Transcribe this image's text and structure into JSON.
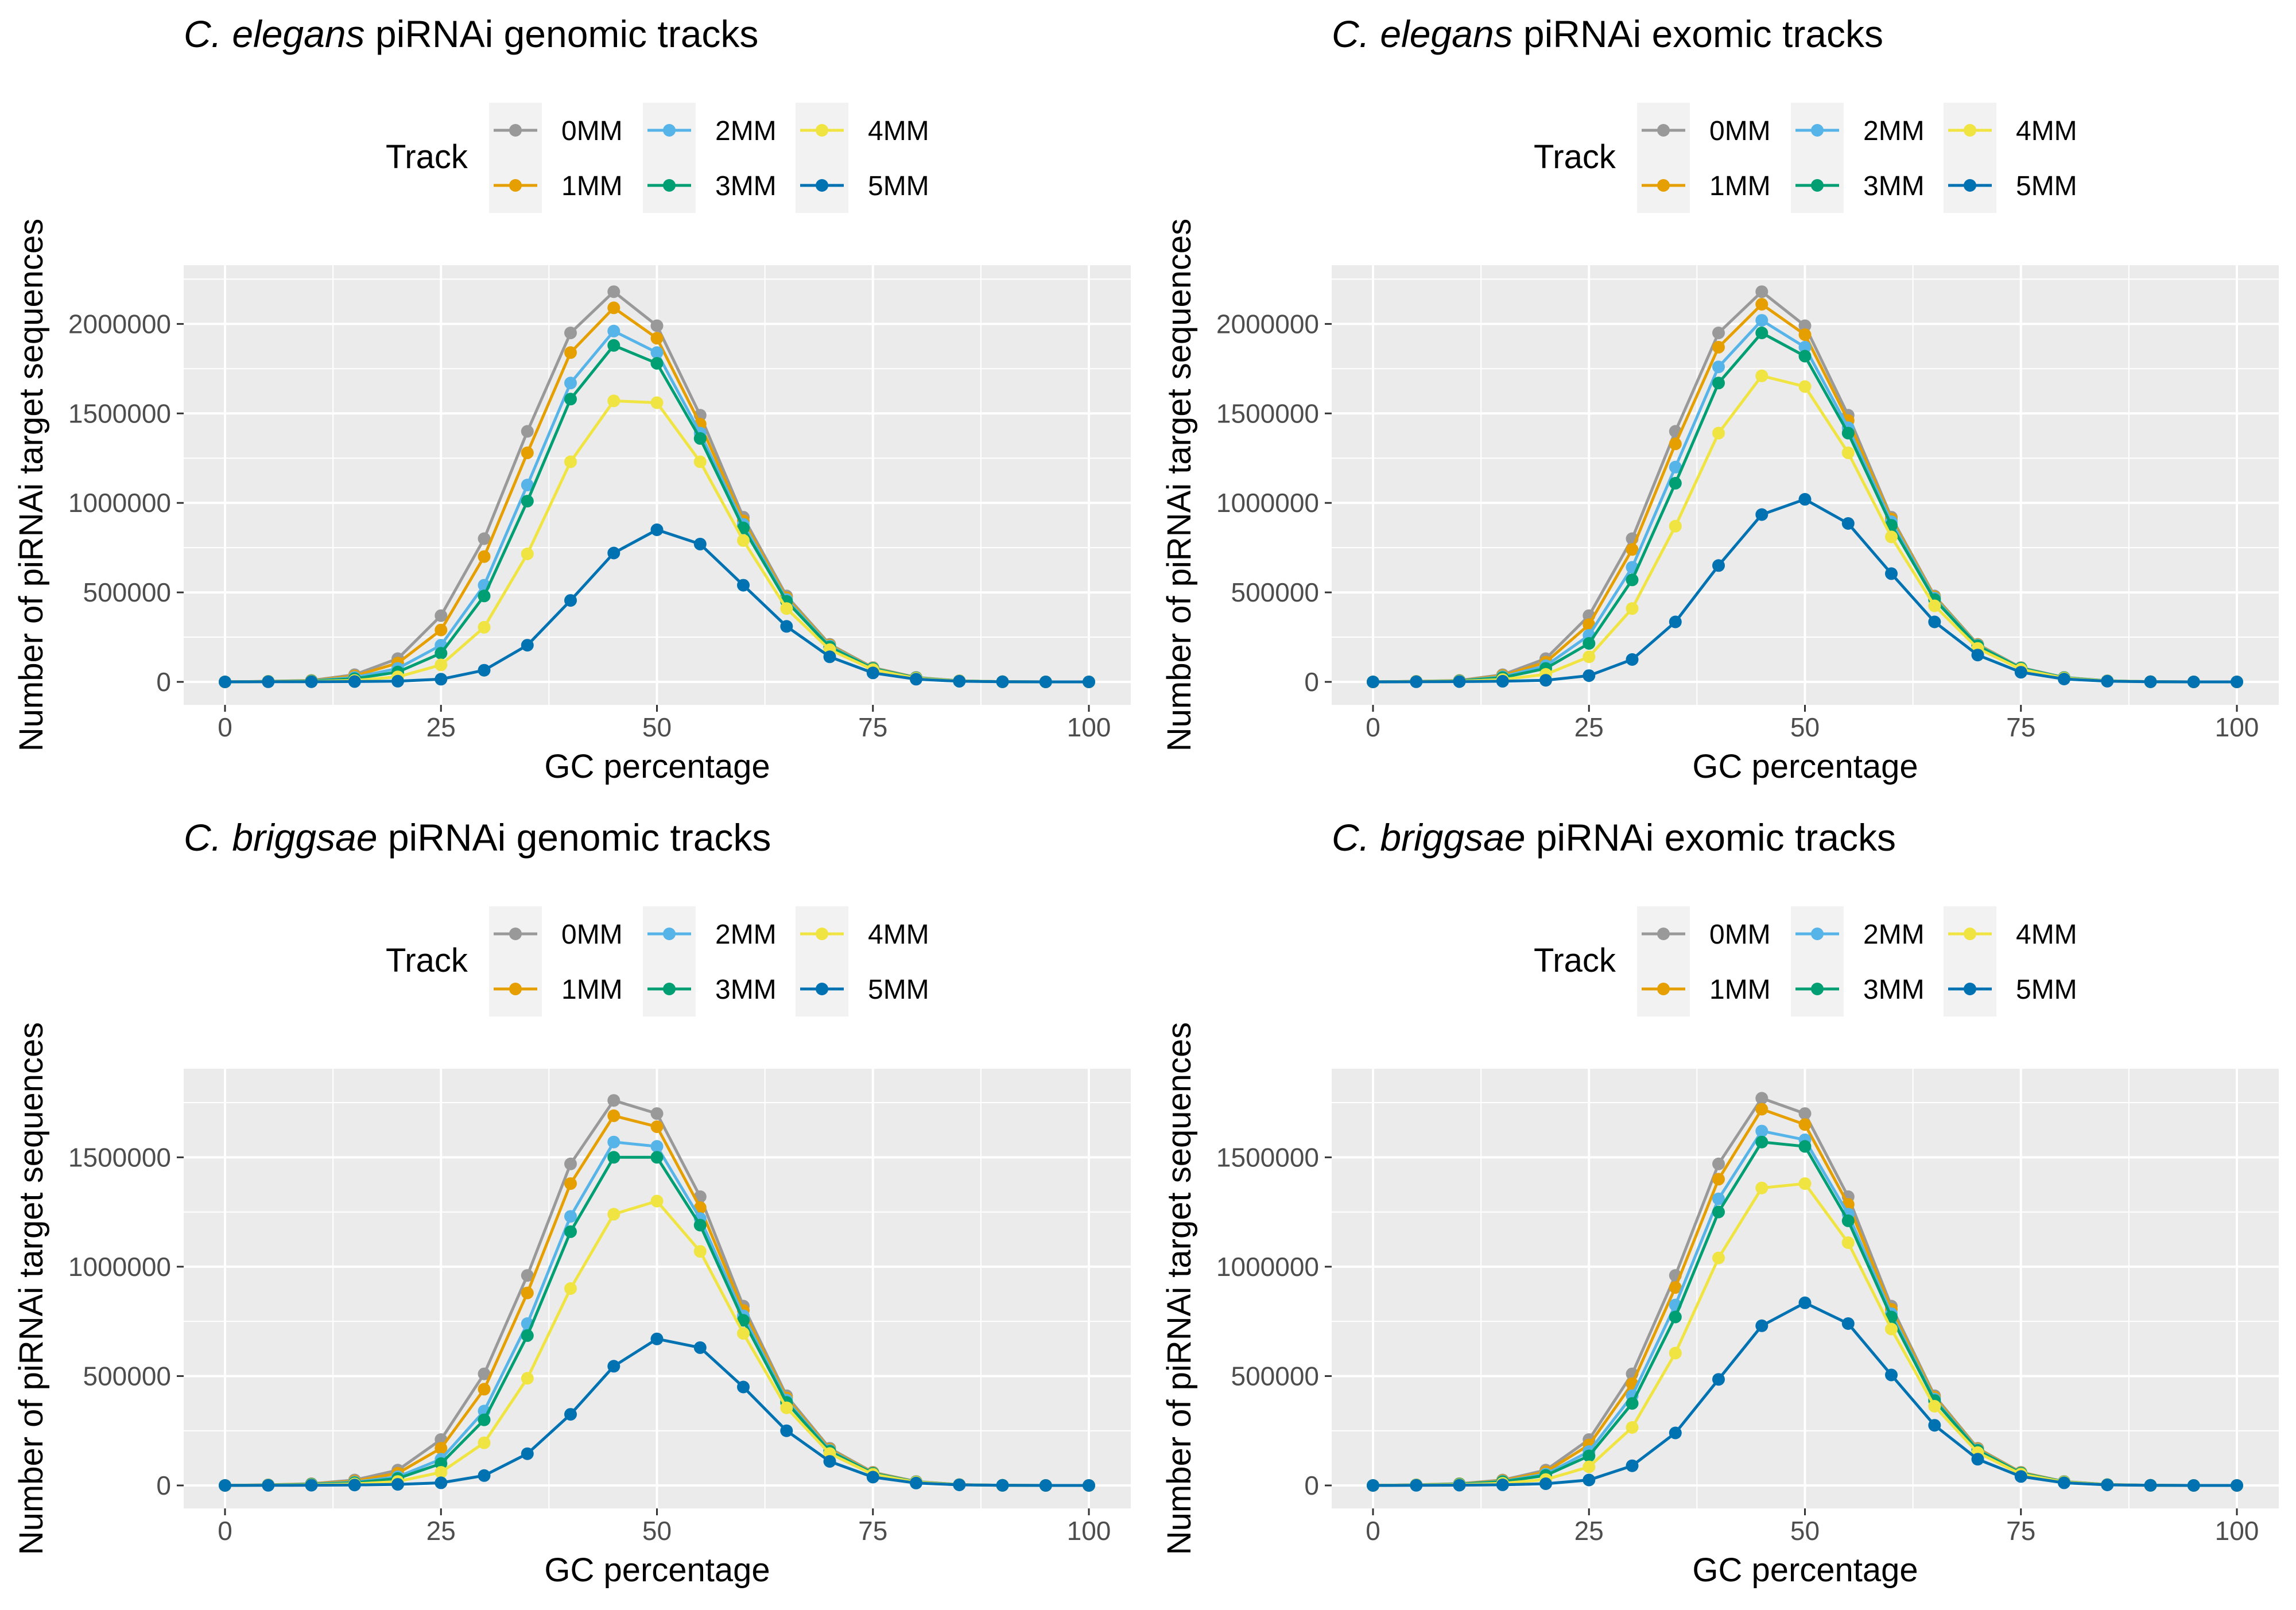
{
  "legend_title": "Track",
  "colors": {
    "panel_bg": "#EBEBEB",
    "grid": "#FFFFFF",
    "legend_key_bg": "#F2F2F2",
    "axis_text": "#4D4D4D",
    "title_text": "#000000"
  },
  "chart_data": [
    {
      "type": "line",
      "title_italic": "C. elegans",
      "title_rest": " piRNAi genomic tracks",
      "xlabel": "GC percentage",
      "ylabel": "Number of piRNAi target sequences",
      "xlim": [
        0,
        100
      ],
      "ylim": [
        0,
        2200000
      ],
      "xticks": [
        0,
        25,
        50,
        75,
        100
      ],
      "xtick_labels": [
        "0",
        "25",
        "50",
        "75",
        "100"
      ],
      "yticks": [
        0,
        500000,
        1000000,
        1500000,
        2000000
      ],
      "ytick_labels": [
        "0",
        "500000",
        "1000000",
        "1500000",
        "2000000"
      ],
      "grid": true,
      "legend_position": "top",
      "x": [
        0,
        5,
        10,
        15,
        20,
        25,
        30,
        35,
        40,
        45,
        50,
        55,
        60,
        65,
        70,
        75,
        80,
        85,
        90,
        95,
        100
      ],
      "series": [
        {
          "name": "0MM",
          "color": "#999999",
          "values": [
            0,
            3000,
            8000,
            40000,
            130000,
            370000,
            800000,
            1400000,
            1950000,
            2180000,
            1990000,
            1490000,
            920000,
            480000,
            210000,
            80000,
            25000,
            6000,
            1000,
            0,
            0
          ]
        },
        {
          "name": "1MM",
          "color": "#E69F00",
          "values": [
            0,
            2800,
            7000,
            33000,
            105000,
            290000,
            700000,
            1280000,
            1840000,
            2090000,
            1920000,
            1440000,
            900000,
            470000,
            205000,
            78000,
            24000,
            5800,
            900,
            0,
            0
          ]
        },
        {
          "name": "2MM",
          "color": "#56B4E9",
          "values": [
            0,
            2500,
            5500,
            25000,
            75000,
            205000,
            540000,
            1100000,
            1670000,
            1960000,
            1840000,
            1390000,
            880000,
            460000,
            200000,
            76000,
            23000,
            5500,
            800,
            0,
            0
          ]
        },
        {
          "name": "3MM",
          "color": "#009E73",
          "values": [
            0,
            2200,
            4500,
            18000,
            55000,
            160000,
            480000,
            1010000,
            1580000,
            1880000,
            1780000,
            1360000,
            860000,
            450000,
            195000,
            74000,
            22000,
            5300,
            700,
            0,
            0
          ]
        },
        {
          "name": "4MM",
          "color": "#F0E442",
          "values": [
            0,
            1500,
            2500,
            8000,
            28000,
            95000,
            305000,
            715000,
            1230000,
            1570000,
            1560000,
            1230000,
            790000,
            410000,
            180000,
            69000,
            20000,
            5000,
            600,
            0,
            0
          ]
        },
        {
          "name": "5MM",
          "color": "#0072B2",
          "values": [
            0,
            500,
            1000,
            2000,
            4000,
            15000,
            65000,
            205000,
            455000,
            720000,
            850000,
            770000,
            540000,
            310000,
            140000,
            50000,
            15000,
            3500,
            500,
            0,
            0
          ]
        }
      ]
    },
    {
      "type": "line",
      "title_italic": "C. elegans",
      "title_rest": " piRNAi exomic tracks",
      "xlabel": "GC percentage",
      "ylabel": "Number of piRNAi target sequences",
      "xlim": [
        0,
        100
      ],
      "ylim": [
        0,
        2200000
      ],
      "xticks": [
        0,
        25,
        50,
        75,
        100
      ],
      "xtick_labels": [
        "0",
        "25",
        "50",
        "75",
        "100"
      ],
      "yticks": [
        0,
        500000,
        1000000,
        1500000,
        2000000
      ],
      "ytick_labels": [
        "0",
        "500000",
        "1000000",
        "1500000",
        "2000000"
      ],
      "grid": true,
      "legend_position": "top",
      "x": [
        0,
        5,
        10,
        15,
        20,
        25,
        30,
        35,
        40,
        45,
        50,
        55,
        60,
        65,
        70,
        75,
        80,
        85,
        90,
        95,
        100
      ],
      "series": [
        {
          "name": "0MM",
          "color": "#999999",
          "values": [
            0,
            3000,
            8000,
            40000,
            130000,
            370000,
            800000,
            1400000,
            1950000,
            2180000,
            1990000,
            1490000,
            920000,
            480000,
            210000,
            80000,
            25000,
            6000,
            1000,
            0,
            0
          ]
        },
        {
          "name": "1MM",
          "color": "#E69F00",
          "values": [
            0,
            2800,
            7000,
            35000,
            110000,
            320000,
            740000,
            1330000,
            1870000,
            2110000,
            1940000,
            1460000,
            910000,
            475000,
            208000,
            79000,
            24500,
            5900,
            900,
            0,
            0
          ]
        },
        {
          "name": "2MM",
          "color": "#56B4E9",
          "values": [
            0,
            2600,
            6000,
            29000,
            90000,
            260000,
            640000,
            1200000,
            1760000,
            2020000,
            1870000,
            1420000,
            895000,
            468000,
            205000,
            78000,
            24000,
            5700,
            850,
            0,
            0
          ]
        },
        {
          "name": "3MM",
          "color": "#009E73",
          "values": [
            0,
            2300,
            5000,
            24000,
            75000,
            215000,
            570000,
            1110000,
            1670000,
            1950000,
            1820000,
            1390000,
            875000,
            460000,
            201000,
            76000,
            23000,
            5500,
            800,
            0,
            0
          ]
        },
        {
          "name": "4MM",
          "color": "#F0E442",
          "values": [
            0,
            1800,
            3500,
            13000,
            42000,
            140000,
            410000,
            870000,
            1390000,
            1710000,
            1650000,
            1280000,
            810000,
            425000,
            187000,
            71000,
            21000,
            5100,
            700,
            0,
            0
          ]
        },
        {
          "name": "5MM",
          "color": "#0072B2",
          "values": [
            0,
            700,
            1500,
            3500,
            9000,
            35000,
            125000,
            335000,
            650000,
            935000,
            1020000,
            885000,
            605000,
            335000,
            150000,
            54000,
            16000,
            3800,
            550,
            0,
            0
          ]
        }
      ]
    },
    {
      "type": "line",
      "title_italic": "C. briggsae",
      "title_rest": " piRNAi genomic tracks",
      "xlabel": "GC percentage",
      "ylabel": "Number of piRNAi target sequences",
      "xlim": [
        0,
        100
      ],
      "ylim": [
        0,
        1800000
      ],
      "xticks": [
        0,
        25,
        50,
        75,
        100
      ],
      "xtick_labels": [
        "0",
        "25",
        "50",
        "75",
        "100"
      ],
      "yticks": [
        0,
        500000,
        1000000,
        1500000
      ],
      "ytick_labels": [
        "0",
        "500000",
        "1000000",
        "1500000"
      ],
      "grid": true,
      "legend_position": "top",
      "x": [
        0,
        5,
        10,
        15,
        20,
        25,
        30,
        35,
        40,
        45,
        50,
        55,
        60,
        65,
        70,
        75,
        80,
        85,
        90,
        95,
        100
      ],
      "series": [
        {
          "name": "0MM",
          "color": "#999999",
          "values": [
            0,
            3000,
            8000,
            25000,
            70000,
            210000,
            510000,
            960000,
            1470000,
            1760000,
            1700000,
            1320000,
            820000,
            410000,
            170000,
            60000,
            18000,
            4000,
            800,
            0,
            0
          ]
        },
        {
          "name": "1MM",
          "color": "#E69F00",
          "values": [
            0,
            2700,
            7000,
            20000,
            56000,
            170000,
            440000,
            880000,
            1380000,
            1690000,
            1640000,
            1270000,
            800000,
            400000,
            165000,
            58000,
            17000,
            3800,
            700,
            0,
            0
          ]
        },
        {
          "name": "2MM",
          "color": "#56B4E9",
          "values": [
            0,
            2400,
            6000,
            15000,
            40000,
            120000,
            340000,
            740000,
            1230000,
            1570000,
            1550000,
            1220000,
            775000,
            390000,
            160000,
            56000,
            16500,
            3600,
            650,
            0,
            0
          ]
        },
        {
          "name": "3MM",
          "color": "#009E73",
          "values": [
            0,
            2100,
            5000,
            12000,
            32000,
            100000,
            300000,
            685000,
            1160000,
            1500000,
            1500000,
            1190000,
            755000,
            380000,
            156000,
            55000,
            16000,
            3500,
            600,
            0,
            0
          ]
        },
        {
          "name": "4MM",
          "color": "#F0E442",
          "values": [
            0,
            1500,
            3000,
            7000,
            18000,
            60000,
            195000,
            490000,
            900000,
            1240000,
            1300000,
            1070000,
            695000,
            355000,
            146000,
            51000,
            15000,
            3200,
            550,
            0,
            0
          ]
        },
        {
          "name": "5MM",
          "color": "#0072B2",
          "values": [
            0,
            500,
            1000,
            2000,
            5000,
            12000,
            45000,
            145000,
            325000,
            545000,
            670000,
            630000,
            450000,
            250000,
            110000,
            38000,
            11000,
            2500,
            400,
            0,
            0
          ]
        }
      ]
    },
    {
      "type": "line",
      "title_italic": "C. briggsae",
      "title_rest": " piRNAi exomic tracks",
      "xlabel": "GC percentage",
      "ylabel": "Number of piRNAi target sequences",
      "xlim": [
        0,
        100
      ],
      "ylim": [
        0,
        1800000
      ],
      "xticks": [
        0,
        25,
        50,
        75,
        100
      ],
      "xtick_labels": [
        "0",
        "25",
        "50",
        "75",
        "100"
      ],
      "yticks": [
        0,
        500000,
        1000000,
        1500000
      ],
      "ytick_labels": [
        "0",
        "500000",
        "1000000",
        "1500000"
      ],
      "grid": true,
      "legend_position": "top",
      "x": [
        0,
        5,
        10,
        15,
        20,
        25,
        30,
        35,
        40,
        45,
        50,
        55,
        60,
        65,
        70,
        75,
        80,
        85,
        90,
        95,
        100
      ],
      "series": [
        {
          "name": "0MM",
          "color": "#999999",
          "values": [
            0,
            3000,
            8000,
            25000,
            70000,
            210000,
            510000,
            960000,
            1470000,
            1770000,
            1700000,
            1320000,
            820000,
            410000,
            170000,
            60000,
            18000,
            4000,
            800,
            0,
            0
          ]
        },
        {
          "name": "1MM",
          "color": "#E69F00",
          "values": [
            0,
            2800,
            7500,
            22000,
            62000,
            185000,
            465000,
            905000,
            1400000,
            1720000,
            1650000,
            1285000,
            805000,
            403000,
            167000,
            59000,
            17500,
            3900,
            750,
            0,
            0
          ]
        },
        {
          "name": "2MM",
          "color": "#56B4E9",
          "values": [
            0,
            2600,
            6500,
            19000,
            52000,
            155000,
            410000,
            825000,
            1310000,
            1620000,
            1580000,
            1240000,
            785000,
            395000,
            163000,
            57000,
            17000,
            3800,
            700,
            0,
            0
          ]
        },
        {
          "name": "3MM",
          "color": "#009E73",
          "values": [
            0,
            2400,
            6000,
            17000,
            46000,
            135000,
            375000,
            770000,
            1250000,
            1570000,
            1550000,
            1210000,
            770000,
            388000,
            160000,
            56000,
            16500,
            3700,
            650,
            0,
            0
          ]
        },
        {
          "name": "4MM",
          "color": "#F0E442",
          "values": [
            0,
            1800,
            4000,
            10000,
            27000,
            85000,
            265000,
            605000,
            1040000,
            1360000,
            1380000,
            1110000,
            715000,
            362000,
            150000,
            52000,
            15500,
            3400,
            600,
            0,
            0
          ]
        },
        {
          "name": "5MM",
          "color": "#0072B2",
          "values": [
            0,
            600,
            1200,
            3000,
            8000,
            25000,
            90000,
            240000,
            485000,
            730000,
            835000,
            740000,
            505000,
            275000,
            120000,
            41000,
            12000,
            2700,
            450,
            0,
            0
          ]
        }
      ]
    }
  ]
}
